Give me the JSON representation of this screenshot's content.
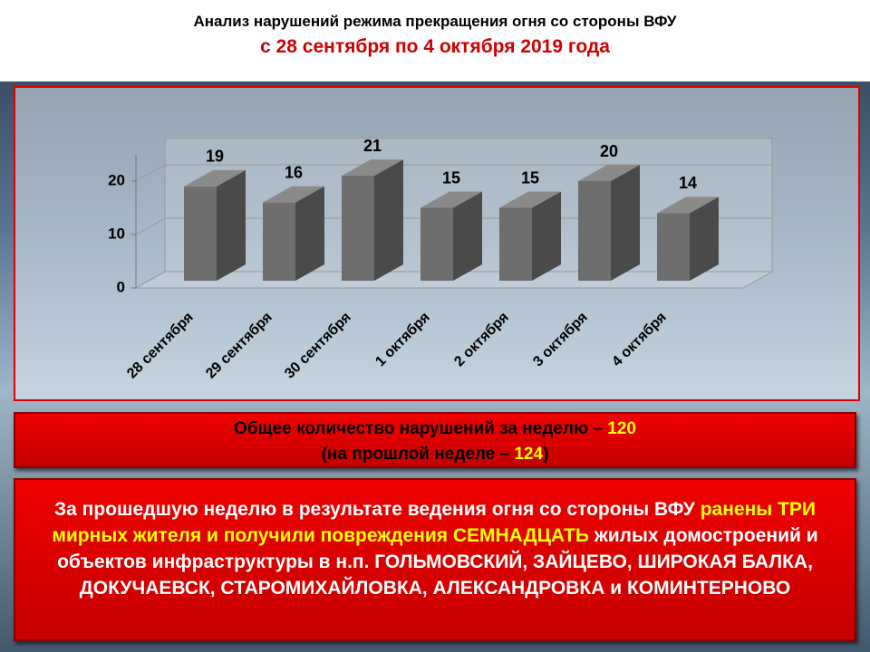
{
  "chart_data": {
    "type": "bar3d",
    "title": "Анализ нарушений режима прекращения огня со стороны ВФУ",
    "subtitle": "с 28 сентября по 4 октября 2019 года",
    "categories": [
      "28 сентября",
      "29 сентября",
      "30 сентября",
      "1 октября",
      "2 октября",
      "3 октября",
      "4 октября"
    ],
    "values": [
      19,
      16,
      21,
      15,
      15,
      20,
      14
    ],
    "color": "#6e6e6e",
    "ylim": [
      0,
      25
    ],
    "yticks": [
      0,
      10,
      20
    ],
    "grid": true
  },
  "summary": {
    "line1": "Общее количество нарушений за неделю –",
    "total": 120,
    "line2": "(на прошлой неделе –",
    "previous": 124,
    "line2_end": ")"
  },
  "details": {
    "part1": "За прошедшую неделю в результате ведения огня со стороны ВФУ",
    "part2": "ранены ТРИ мирных жителя и получили повреждения СЕМНАДЦАТЬ",
    "part3": "жилых домостроений и объектов инфраструктуры в н.п. ГОЛЬМОВСКИЙ, ЗАЙЦЕВО, ШИРОКАЯ БАЛКА, ДОКУЧАЕВСК, СТАРОМИХАЙЛОВКА, АЛЕКСАНДРОВКА и КОМИНТЕРНОВО"
  }
}
